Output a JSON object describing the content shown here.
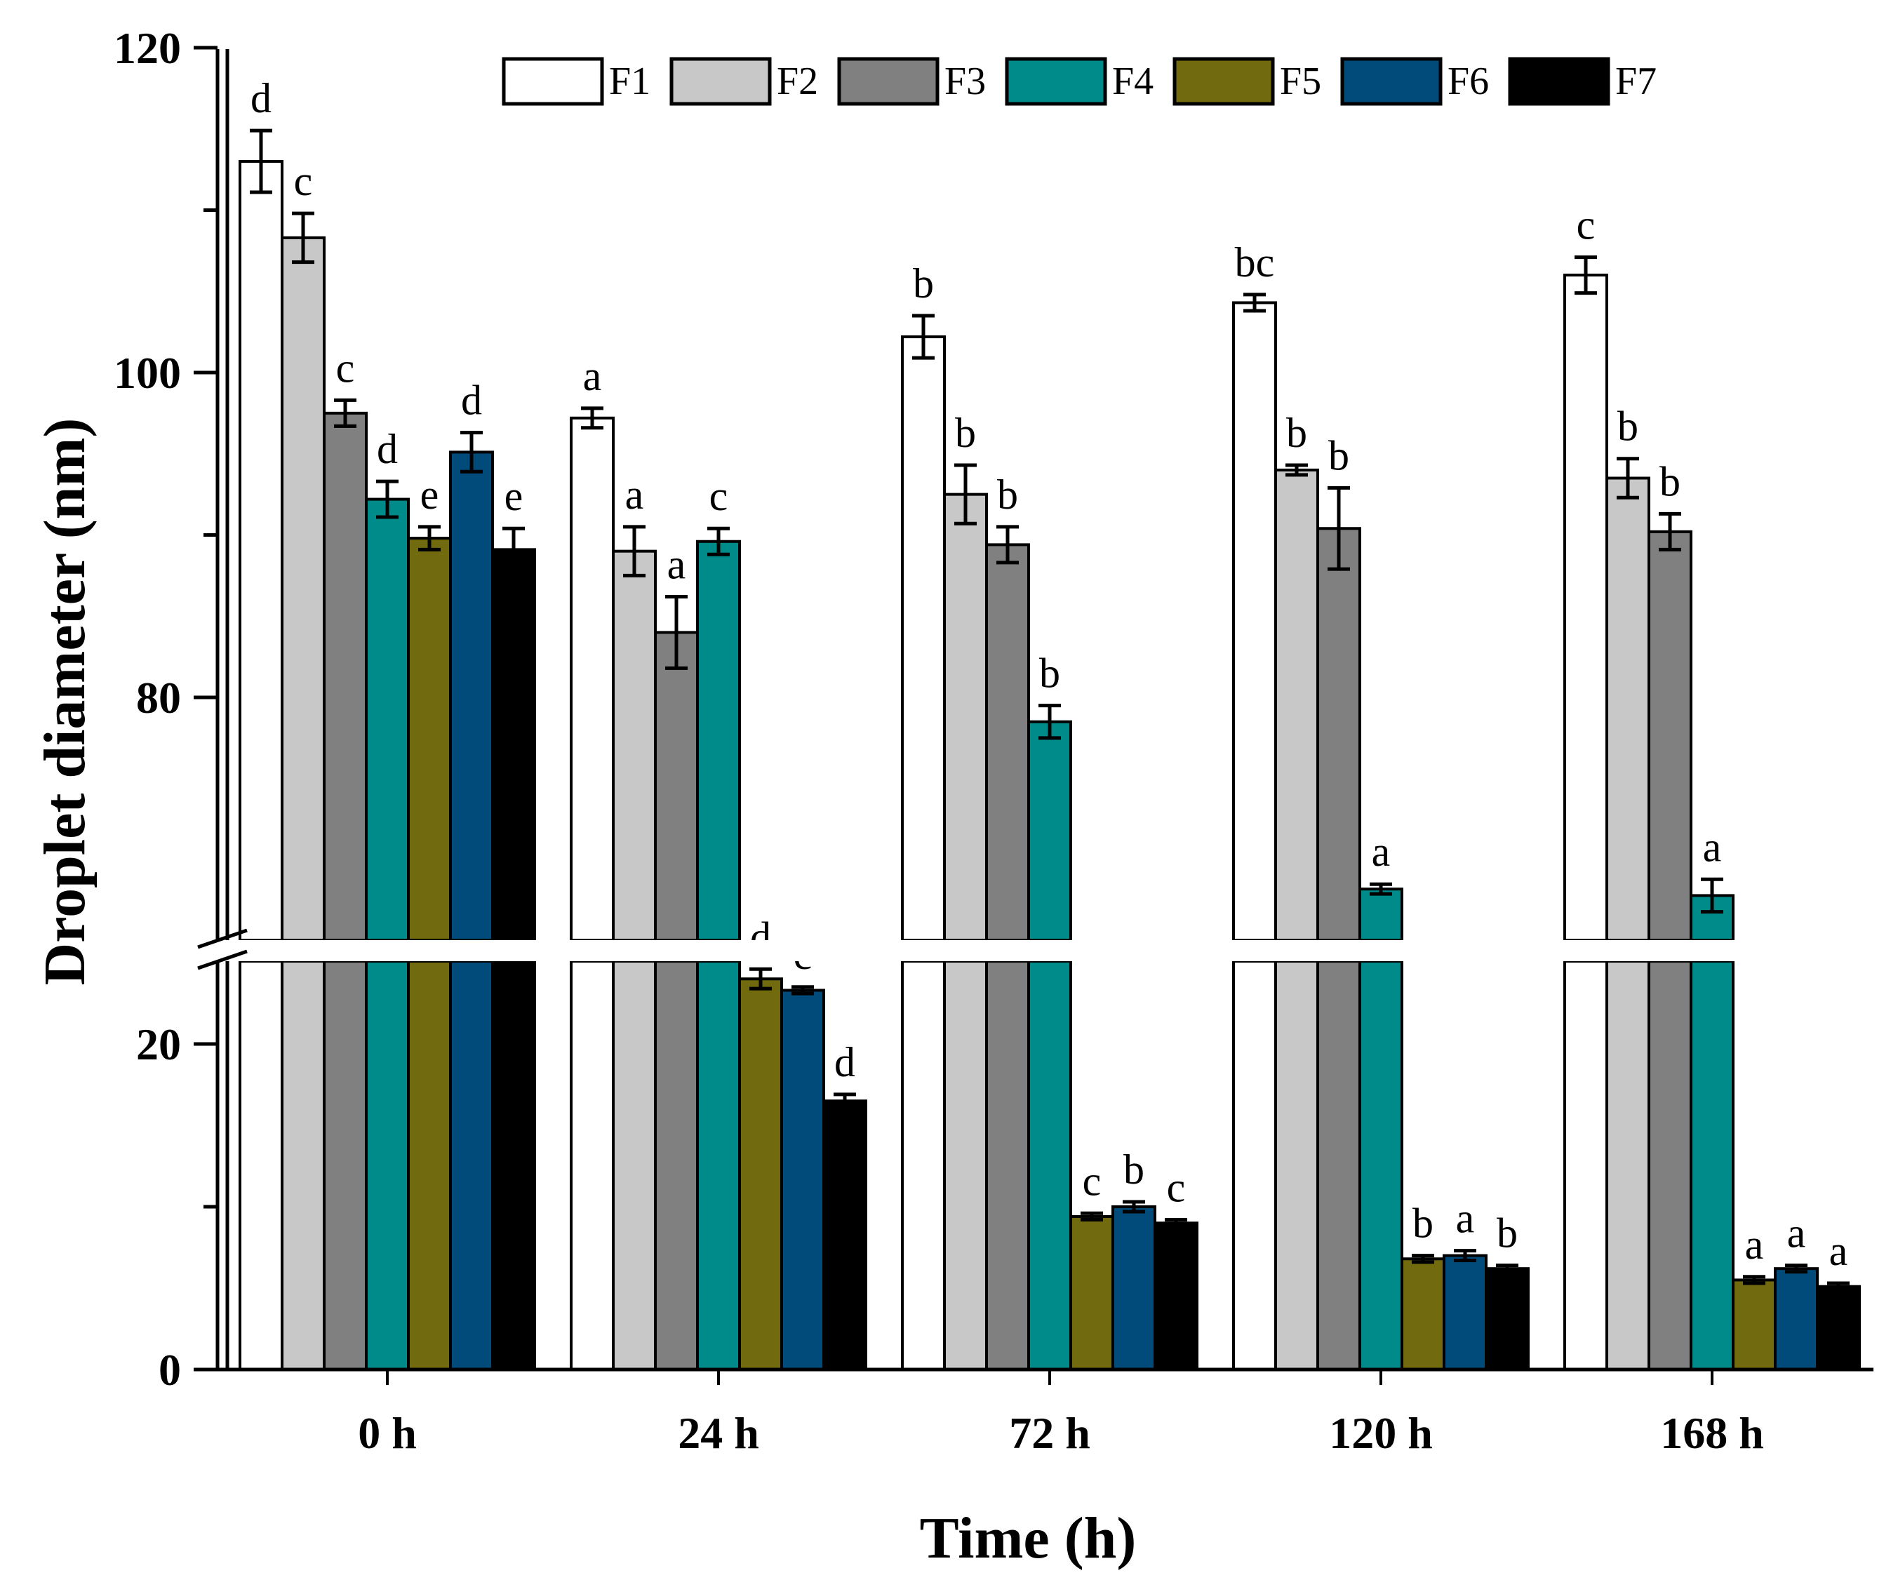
{
  "chart_data": {
    "type": "bar",
    "xlabel": "Time (h)",
    "ylabel": "Droplet diameter (nm)",
    "categories": [
      "0 h",
      "24 h",
      "72 h",
      "120 h",
      "168 h"
    ],
    "y_axis": {
      "break": true,
      "lower_range": [
        0,
        25
      ],
      "upper_range": [
        65,
        120
      ],
      "lower_ticks": [
        0,
        20
      ],
      "upper_ticks": [
        80,
        100,
        120
      ],
      "minor_ticks": [
        10,
        90,
        110
      ]
    },
    "legend": {
      "position": "top-right",
      "orientation": "horizontal"
    },
    "series": [
      {
        "name": "F1",
        "color": "#ffffff",
        "values": [
          113.0,
          97.2,
          102.2,
          104.3,
          106.0
        ],
        "errors": [
          1.9,
          0.6,
          1.3,
          0.5,
          1.1
        ],
        "labels": [
          "d",
          "a",
          "b",
          "bc",
          "c"
        ]
      },
      {
        "name": "F2",
        "color": "#c8c8c8",
        "values": [
          108.3,
          89.0,
          92.5,
          94.0,
          93.5
        ],
        "errors": [
          1.5,
          1.5,
          1.8,
          0.3,
          1.2
        ],
        "labels": [
          "c",
          "a",
          "b",
          "b",
          "b"
        ]
      },
      {
        "name": "F3",
        "color": "#808080",
        "values": [
          97.5,
          84.0,
          89.4,
          90.4,
          90.2
        ],
        "errors": [
          0.8,
          2.2,
          1.1,
          2.5,
          1.1
        ],
        "labels": [
          "c",
          "a",
          "b",
          "b",
          "b"
        ]
      },
      {
        "name": "F4",
        "color": "#008b8b",
        "values": [
          92.2,
          89.6,
          78.5,
          68.2,
          67.8
        ],
        "errors": [
          1.1,
          0.8,
          1.0,
          0.3,
          1.0
        ],
        "labels": [
          "d",
          "c",
          "b",
          "a",
          "a"
        ]
      },
      {
        "name": "F5",
        "color": "#716a0e",
        "values": [
          89.8,
          24.0,
          9.4,
          6.8,
          5.5
        ],
        "errors": [
          0.7,
          0.6,
          0.2,
          0.2,
          0.2
        ],
        "labels": [
          "e",
          "d",
          "c",
          "b",
          "a"
        ]
      },
      {
        "name": "F6",
        "color": "#004b7a",
        "values": [
          95.1,
          23.3,
          10.0,
          7.0,
          6.2
        ],
        "errors": [
          1.2,
          0.2,
          0.3,
          0.3,
          0.2
        ],
        "labels": [
          "d",
          "c",
          "b",
          "a",
          "a"
        ]
      },
      {
        "name": "F7",
        "color": "#000000",
        "values": [
          89.1,
          16.5,
          9.0,
          6.2,
          5.1
        ],
        "errors": [
          1.3,
          0.4,
          0.2,
          0.2,
          0.2
        ],
        "labels": [
          "e",
          "d",
          "c",
          "b",
          "a"
        ]
      }
    ]
  }
}
